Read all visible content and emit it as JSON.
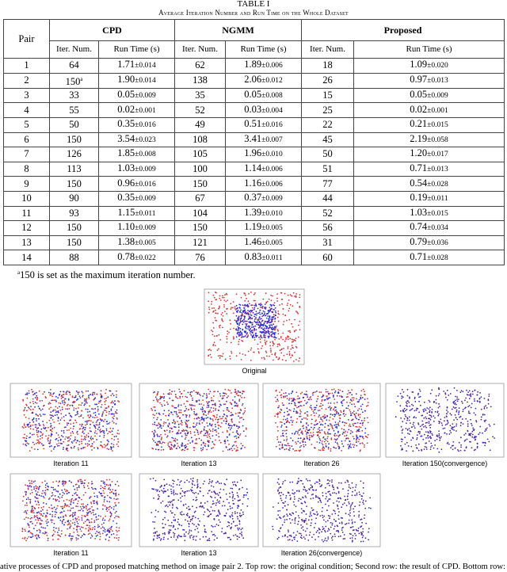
{
  "table": {
    "title": "TABLE I",
    "subtitle": "Average Iteration Number and Run Time on the Whole Dataset",
    "header": {
      "pair": "Pair",
      "groups": [
        "CPD",
        "NGMM",
        "Proposed"
      ],
      "sub": [
        "Iter. Num.",
        "Run Time (s)",
        "Iter. Num.",
        "Run Time (s)",
        "Iter. Num.",
        "Run Time (s)"
      ]
    },
    "rows": [
      [
        "1",
        {
          "value": "64"
        },
        {
          "value": "1.71",
          "pm": "±0.014"
        },
        {
          "value": "62"
        },
        {
          "value": "1.89",
          "pm": "±0.006"
        },
        {
          "value": "18"
        },
        {
          "value": "1.09",
          "pm": "±0.020"
        }
      ],
      [
        "2",
        {
          "value": "150",
          "sup": "a"
        },
        {
          "value": "1.90",
          "pm": "±0.014"
        },
        {
          "value": "138"
        },
        {
          "value": "2.06",
          "pm": "±0.012"
        },
        {
          "value": "26"
        },
        {
          "value": "0.97",
          "pm": "±0.013"
        }
      ],
      [
        "3",
        {
          "value": "33"
        },
        {
          "value": "0.05",
          "pm": "±0.009"
        },
        {
          "value": "35"
        },
        {
          "value": "0.05",
          "pm": "±0.008"
        },
        {
          "value": "15"
        },
        {
          "value": "0.05",
          "pm": "±0.009"
        }
      ],
      [
        "4",
        {
          "value": "55"
        },
        {
          "value": "0.02",
          "pm": "±0.001"
        },
        {
          "value": "52"
        },
        {
          "value": "0.03",
          "pm": "±0.004"
        },
        {
          "value": "25"
        },
        {
          "value": "0.02",
          "pm": "±0.001"
        }
      ],
      [
        "5",
        {
          "value": "50"
        },
        {
          "value": "0.35",
          "pm": "±0.016"
        },
        {
          "value": "49"
        },
        {
          "value": "0.51",
          "pm": "±0.016"
        },
        {
          "value": "22"
        },
        {
          "value": "0.21",
          "pm": "±0.015"
        }
      ],
      [
        "6",
        {
          "value": "150"
        },
        {
          "value": "3.54",
          "pm": "±0.023"
        },
        {
          "value": "108"
        },
        {
          "value": "3.41",
          "pm": "±0.007"
        },
        {
          "value": "45"
        },
        {
          "value": "2.19",
          "pm": "±0.058"
        }
      ],
      [
        "7",
        {
          "value": "126"
        },
        {
          "value": "1.85",
          "pm": "±0.008"
        },
        {
          "value": "105"
        },
        {
          "value": "1.96",
          "pm": "±0.010"
        },
        {
          "value": "50"
        },
        {
          "value": "1.20",
          "pm": "±0.017"
        }
      ],
      [
        "8",
        {
          "value": "113"
        },
        {
          "value": "1.03",
          "pm": "±0.009"
        },
        {
          "value": "100"
        },
        {
          "value": "1.14",
          "pm": "±0.006"
        },
        {
          "value": "51"
        },
        {
          "value": "0.71",
          "pm": "±0.013"
        }
      ],
      [
        "9",
        {
          "value": "150"
        },
        {
          "value": "0.96",
          "pm": "±0.016"
        },
        {
          "value": "150"
        },
        {
          "value": "1.16",
          "pm": "±0.006"
        },
        {
          "value": "77"
        },
        {
          "value": "0.54",
          "pm": "±0.028"
        }
      ],
      [
        "10",
        {
          "value": "90"
        },
        {
          "value": "0.35",
          "pm": "±0.009"
        },
        {
          "value": "67"
        },
        {
          "value": "0.37",
          "pm": "±0.009"
        },
        {
          "value": "44"
        },
        {
          "value": "0.19",
          "pm": "±0.011"
        }
      ],
      [
        "11",
        {
          "value": "93"
        },
        {
          "value": "1.15",
          "pm": "±0.011"
        },
        {
          "value": "104"
        },
        {
          "value": "1.39",
          "pm": "±0.010"
        },
        {
          "value": "52"
        },
        {
          "value": "1.03",
          "pm": "±0.015"
        }
      ],
      [
        "12",
        {
          "value": "150"
        },
        {
          "value": "1.10",
          "pm": "±0.009"
        },
        {
          "value": "150"
        },
        {
          "value": "1.19",
          "pm": "±0.005"
        },
        {
          "value": "56"
        },
        {
          "value": "0.74",
          "pm": "±0.034"
        }
      ],
      [
        "13",
        {
          "value": "150"
        },
        {
          "value": "1.38",
          "pm": "±0.005"
        },
        {
          "value": "121"
        },
        {
          "value": "1.46",
          "pm": "±0.005"
        },
        {
          "value": "31"
        },
        {
          "value": "0.79",
          "pm": "±0.036"
        }
      ],
      [
        "14",
        {
          "value": "88"
        },
        {
          "value": "0.78",
          "pm": "±0.022"
        },
        {
          "value": "76"
        },
        {
          "value": "0.83",
          "pm": "±0.011"
        },
        {
          "value": "60"
        },
        {
          "value": "0.71",
          "pm": "±0.028"
        }
      ]
    ],
    "footnote": {
      "mark": "a",
      "text": "150 is set as the maximum iteration number."
    }
  },
  "figure": {
    "panels": [
      {
        "caption": "Original"
      },
      {
        "caption": "Iteration 11"
      },
      {
        "caption": "Iteration 13"
      },
      {
        "caption": "Iteration 26"
      },
      {
        "caption": "Iteration 150(convergence)"
      },
      {
        "caption": "Iteration 11"
      },
      {
        "caption": "Iteration 13"
      },
      {
        "caption": "Iteration 26(convergence)"
      }
    ],
    "caption": "ative processes of CPD and proposed matching method on image pair 2. Top row: the original condition; Second row: the result of CPD. Bottom row:"
  }
}
